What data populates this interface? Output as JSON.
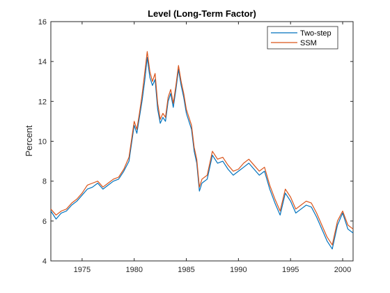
{
  "chart_data": {
    "type": "line",
    "title": "Level (Long-Term Factor)",
    "xlabel": "",
    "ylabel": "Percent",
    "xlim": [
      1972.0,
      2001.0
    ],
    "ylim": [
      4,
      16
    ],
    "xticks": [
      "1975",
      "1980",
      "1985",
      "1990",
      "1995",
      "2000"
    ],
    "yticks": [
      "4",
      "6",
      "8",
      "10",
      "12",
      "14",
      "16"
    ],
    "grid": false,
    "legend_location": "top-right",
    "series": [
      {
        "name": "Two-step",
        "color": "#0072BD",
        "x": [
          1972.0,
          1972.5,
          1973.0,
          1973.5,
          1974.0,
          1974.5,
          1975.0,
          1975.5,
          1976.0,
          1976.5,
          1977.0,
          1977.5,
          1978.0,
          1978.5,
          1979.0,
          1979.5,
          1980.0,
          1980.25,
          1980.5,
          1980.75,
          1981.0,
          1981.25,
          1981.5,
          1981.75,
          1982.0,
          1982.25,
          1982.5,
          1982.75,
          1983.0,
          1983.25,
          1983.5,
          1983.75,
          1984.0,
          1984.25,
          1984.5,
          1984.75,
          1985.0,
          1985.25,
          1985.5,
          1985.75,
          1986.0,
          1986.25,
          1986.5,
          1987.0,
          1987.5,
          1988.0,
          1988.5,
          1989.0,
          1989.5,
          1990.0,
          1990.5,
          1991.0,
          1991.5,
          1992.0,
          1992.5,
          1993.0,
          1993.5,
          1994.0,
          1994.5,
          1995.0,
          1995.5,
          1996.0,
          1996.5,
          1997.0,
          1997.5,
          1998.0,
          1998.5,
          1999.0,
          1999.5,
          2000.0,
          2000.5,
          2001.0
        ],
        "y": [
          6.5,
          6.1,
          6.4,
          6.5,
          6.8,
          7.0,
          7.3,
          7.6,
          7.7,
          7.9,
          7.6,
          7.8,
          8.0,
          8.1,
          8.5,
          9.0,
          10.8,
          10.4,
          11.2,
          12.0,
          13.0,
          14.2,
          13.2,
          12.8,
          13.1,
          11.6,
          10.9,
          11.2,
          11.0,
          12.0,
          12.4,
          11.7,
          12.6,
          13.6,
          12.8,
          12.2,
          11.4,
          11.0,
          10.6,
          9.5,
          8.9,
          7.5,
          7.9,
          8.1,
          9.3,
          8.9,
          9.0,
          8.6,
          8.3,
          8.5,
          8.7,
          8.9,
          8.6,
          8.3,
          8.5,
          7.6,
          6.9,
          6.3,
          7.4,
          7.0,
          6.4,
          6.6,
          6.8,
          6.7,
          6.2,
          5.6,
          5.0,
          4.6,
          5.8,
          6.4,
          5.6,
          5.4
        ]
      },
      {
        "name": "SSM",
        "color": "#D95319",
        "x": [
          1972.0,
          1972.5,
          1973.0,
          1973.5,
          1974.0,
          1974.5,
          1975.0,
          1975.5,
          1976.0,
          1976.5,
          1977.0,
          1977.5,
          1978.0,
          1978.5,
          1979.0,
          1979.5,
          1980.0,
          1980.25,
          1980.5,
          1980.75,
          1981.0,
          1981.25,
          1981.5,
          1981.75,
          1982.0,
          1982.25,
          1982.5,
          1982.75,
          1983.0,
          1983.25,
          1983.5,
          1983.75,
          1984.0,
          1984.25,
          1984.5,
          1984.75,
          1985.0,
          1985.25,
          1985.5,
          1985.75,
          1986.0,
          1986.25,
          1986.5,
          1987.0,
          1987.5,
          1988.0,
          1988.5,
          1989.0,
          1989.5,
          1990.0,
          1990.5,
          1991.0,
          1991.5,
          1992.0,
          1992.5,
          1993.0,
          1993.5,
          1994.0,
          1994.5,
          1995.0,
          1995.5,
          1996.0,
          1996.5,
          1997.0,
          1997.5,
          1998.0,
          1998.5,
          1999.0,
          1999.5,
          2000.0,
          2000.5,
          2001.0
        ],
        "y": [
          6.6,
          6.3,
          6.5,
          6.6,
          6.9,
          7.1,
          7.4,
          7.8,
          7.9,
          8.0,
          7.7,
          7.9,
          8.1,
          8.2,
          8.6,
          9.2,
          11.0,
          10.6,
          11.4,
          12.3,
          13.4,
          14.5,
          13.5,
          13.0,
          13.4,
          11.9,
          11.1,
          11.4,
          11.2,
          12.2,
          12.6,
          11.9,
          12.8,
          13.8,
          13.0,
          12.4,
          11.6,
          11.2,
          10.8,
          9.7,
          9.1,
          7.7,
          8.1,
          8.3,
          9.5,
          9.1,
          9.2,
          8.8,
          8.5,
          8.6,
          8.9,
          9.1,
          8.8,
          8.5,
          8.7,
          7.8,
          7.1,
          6.5,
          7.6,
          7.2,
          6.6,
          6.8,
          7.0,
          6.9,
          6.4,
          5.8,
          5.2,
          4.8,
          6.0,
          6.5,
          5.8,
          5.6
        ]
      }
    ]
  }
}
